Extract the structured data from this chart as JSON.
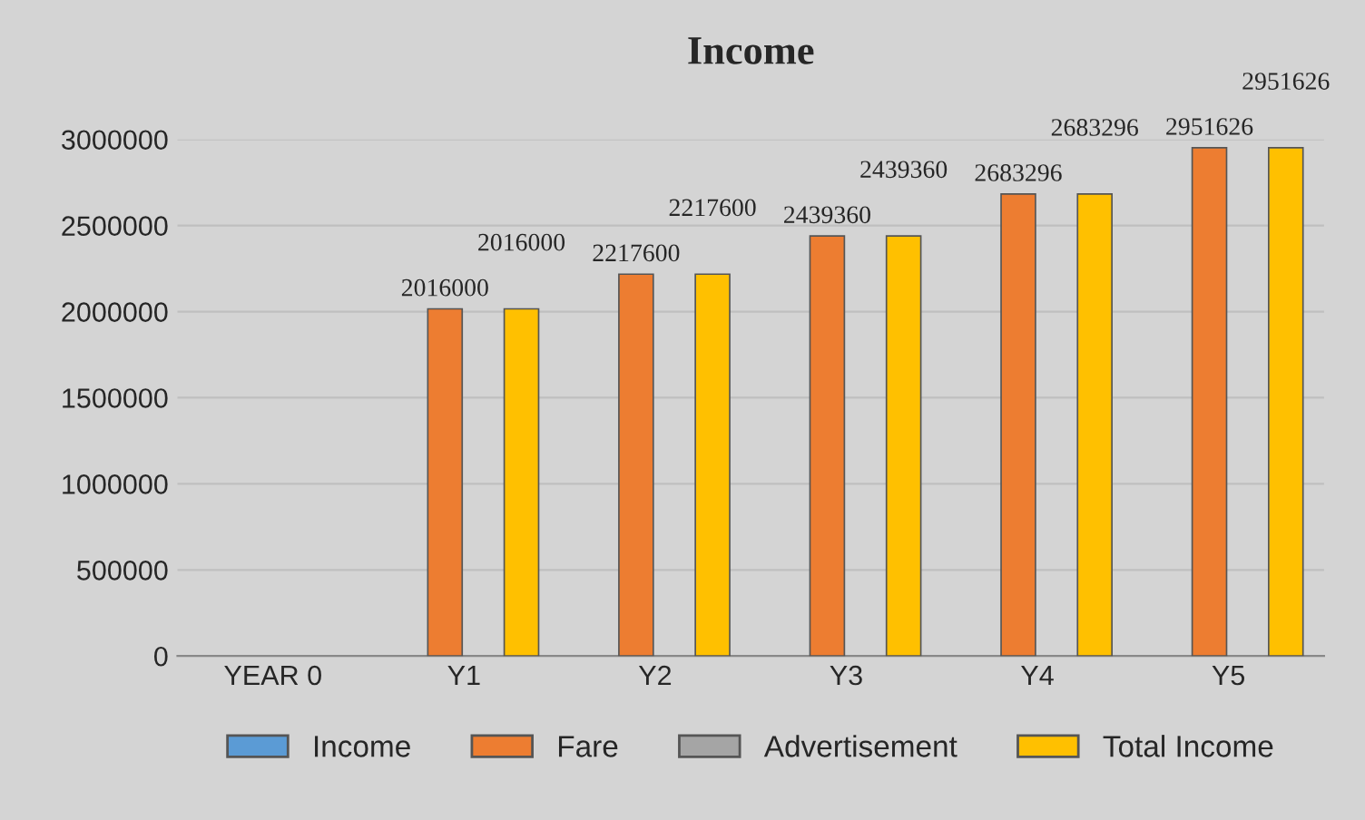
{
  "chart_data": {
    "type": "bar",
    "title": "Income",
    "categories": [
      "YEAR 0",
      "Y1",
      "Y2",
      "Y3",
      "Y4",
      "Y5"
    ],
    "series": [
      {
        "name": "Income",
        "color": "#5b9bd5",
        "values": [
          null,
          null,
          null,
          null,
          null,
          null
        ]
      },
      {
        "name": "Fare",
        "color": "#ed7d31",
        "values": [
          null,
          2016000,
          2217600,
          2439360,
          2683296,
          2951626
        ]
      },
      {
        "name": "Advertisement",
        "color": "#a5a5a5",
        "values": [
          null,
          null,
          null,
          null,
          null,
          null
        ]
      },
      {
        "name": "Total Income",
        "color": "#ffc000",
        "values": [
          null,
          2016000,
          2217600,
          2439360,
          2683296,
          2951626
        ]
      }
    ],
    "ylim": [
      0,
      3000000
    ],
    "yticks": [
      0,
      500000,
      1000000,
      1500000,
      2000000,
      2500000,
      3000000
    ],
    "grid": "y",
    "legend": "bottom",
    "data_labels": true
  }
}
